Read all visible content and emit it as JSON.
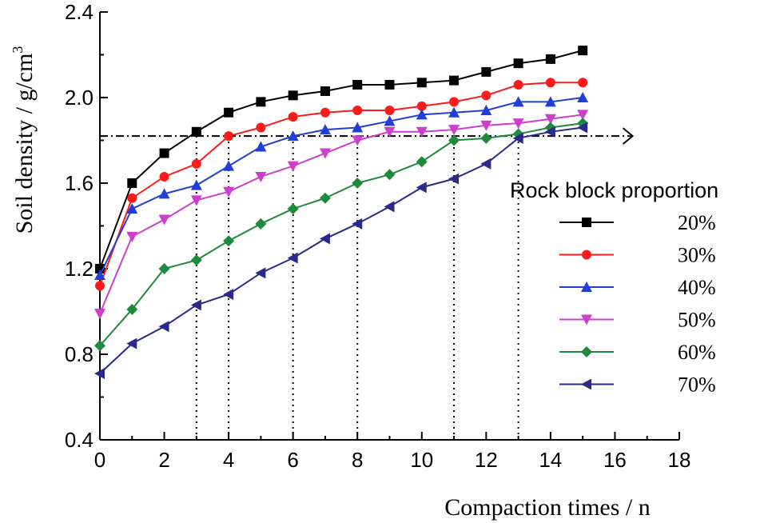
{
  "chart_data": {
    "type": "line",
    "xlabel": "Compaction times / n",
    "ylabel": "Soil density / g/cm",
    "ylabel_superscript": "3",
    "xlim": [
      0,
      18
    ],
    "ylim": [
      0.4,
      2.4
    ],
    "xticks": [
      "0",
      "2",
      "4",
      "6",
      "8",
      "10",
      "12",
      "14",
      "16",
      "18"
    ],
    "yticks": [
      "0.4",
      "0.8",
      "1.2",
      "1.6",
      "2.0",
      "2.4"
    ],
    "grid": false,
    "legend_title": "Rock block proportion",
    "legend_position": "right",
    "x": [
      0,
      1,
      2,
      3,
      4,
      5,
      6,
      7,
      8,
      9,
      10,
      11,
      12,
      13,
      14,
      15
    ],
    "series": [
      {
        "name": "20%",
        "color": "#000000",
        "marker": "square",
        "values": [
          1.2,
          1.6,
          1.74,
          1.84,
          1.93,
          1.98,
          2.01,
          2.03,
          2.06,
          2.06,
          2.07,
          2.08,
          2.12,
          2.16,
          2.18,
          2.22
        ]
      },
      {
        "name": "30%",
        "color": "#ff1a1a",
        "marker": "circle",
        "values": [
          1.12,
          1.53,
          1.63,
          1.69,
          1.82,
          1.86,
          1.91,
          1.93,
          1.94,
          1.94,
          1.96,
          1.98,
          2.01,
          2.06,
          2.07,
          2.07
        ]
      },
      {
        "name": "40%",
        "color": "#1f3fd6",
        "marker": "triangle-up",
        "values": [
          1.17,
          1.48,
          1.55,
          1.59,
          1.68,
          1.77,
          1.82,
          1.85,
          1.86,
          1.89,
          1.92,
          1.93,
          1.94,
          1.98,
          1.98,
          2.0
        ]
      },
      {
        "name": "50%",
        "color": "#cc3fcc",
        "marker": "triangle-down",
        "values": [
          0.99,
          1.35,
          1.43,
          1.52,
          1.56,
          1.63,
          1.68,
          1.74,
          1.8,
          1.84,
          1.84,
          1.85,
          1.87,
          1.88,
          1.9,
          1.92
        ]
      },
      {
        "name": "60%",
        "color": "#1f8a3c",
        "marker": "diamond",
        "values": [
          0.84,
          1.01,
          1.2,
          1.24,
          1.33,
          1.41,
          1.48,
          1.53,
          1.6,
          1.64,
          1.7,
          1.8,
          1.81,
          1.83,
          1.86,
          1.88
        ]
      },
      {
        "name": "70%",
        "color": "#2a2a8a",
        "marker": "triangle-left",
        "values": [
          0.71,
          0.85,
          0.93,
          1.03,
          1.08,
          1.18,
          1.25,
          1.34,
          1.41,
          1.49,
          1.58,
          1.62,
          1.69,
          1.81,
          1.84,
          1.86
        ]
      }
    ],
    "reference_line": {
      "y": 1.82,
      "x_end": 16.5,
      "arrow": true
    },
    "reference_verticals": [
      3,
      4,
      6,
      8,
      11,
      13
    ]
  }
}
